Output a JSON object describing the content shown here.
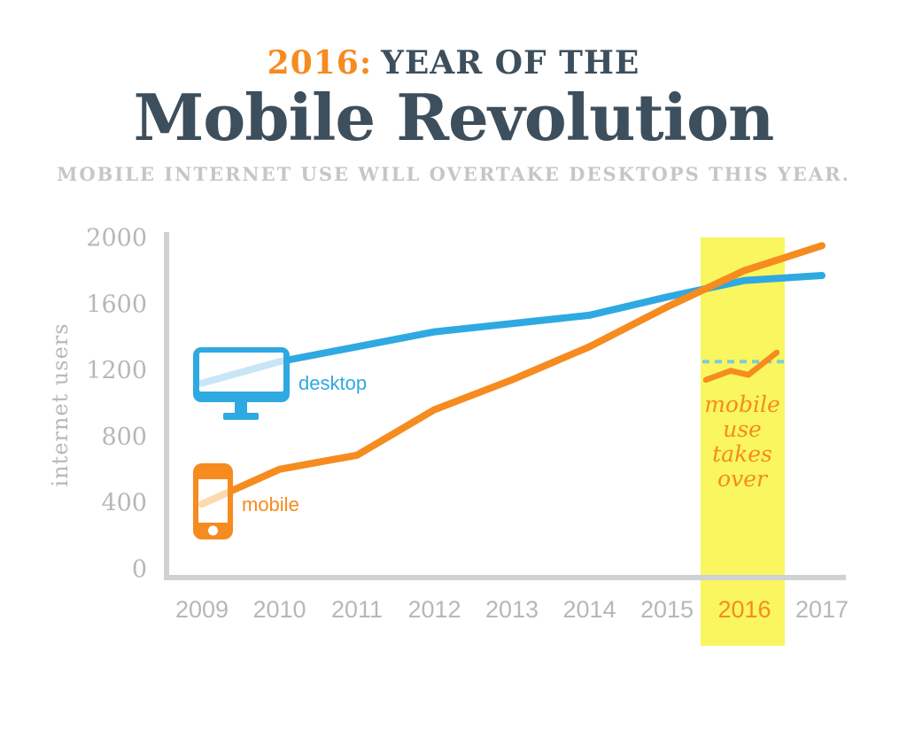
{
  "header": {
    "year": "2016:",
    "title_rest": "YEAR OF THE",
    "main_title": "Mobile Revolution",
    "subtitle": "MOBILE INTERNET USE WILL OVERTAKE DESKTOPS THIS YEAR."
  },
  "chart_data": {
    "type": "line",
    "x": [
      2009,
      2010,
      2011,
      2012,
      2013,
      2014,
      2015,
      2016,
      2017
    ],
    "series": [
      {
        "name": "desktop",
        "color": "#2fa9e1",
        "light_color": "#c9e6f7",
        "values": [
          1120,
          1250,
          1340,
          1430,
          1480,
          1530,
          1640,
          1740,
          1770
        ]
      },
      {
        "name": "mobile",
        "color": "#f68b1f",
        "light_color": "#fcd9ae",
        "values": [
          390,
          600,
          685,
          960,
          1140,
          1340,
          1580,
          1800,
          1950
        ]
      }
    ],
    "ylabel": "internet users",
    "yticks": [
      0,
      400,
      800,
      1200,
      1600,
      2000
    ],
    "ylim": [
      0,
      2000
    ],
    "grid": false,
    "legend": "inline icon labels",
    "highlight_year": 2016,
    "annotation": {
      "lines": [
        "mobile",
        "use",
        "takes",
        "over"
      ],
      "sparkline": {
        "threshold": 1250,
        "points": [
          [
            0.063,
            1140
          ],
          [
            0.358,
            1195
          ],
          [
            0.568,
            1170
          ],
          [
            0.905,
            1305
          ]
        ]
      }
    }
  },
  "colors": {
    "orange": "#f68b1f",
    "blue": "#2fa9e1",
    "dark": "#3d4f5c",
    "muted": "#b5b8ba",
    "subtitle_gray": "#c4c7c9",
    "axis": "#ced2d4",
    "band": "#f9f65f",
    "dashed": "#7fccd5"
  }
}
